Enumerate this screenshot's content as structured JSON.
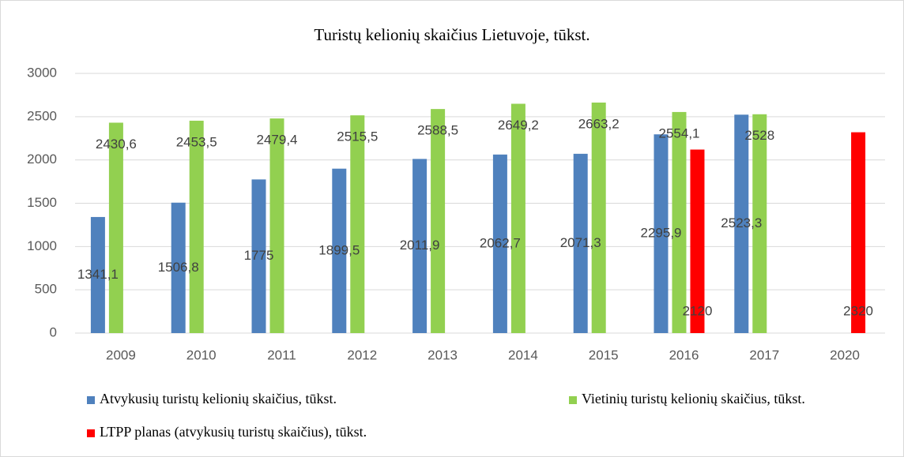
{
  "chart_data": {
    "type": "bar",
    "title": "Turistų kelionių skaičius Lietuvoje, tūkst.",
    "categories": [
      "2009",
      "2010",
      "2011",
      "2012",
      "2013",
      "2014",
      "2015",
      "2016",
      "2017",
      "2020"
    ],
    "series": [
      {
        "name": "Atvykusių turistų kelionių skaičius, tūkst.",
        "color": "#4f81bd",
        "values": [
          1341.1,
          1506.8,
          1775,
          1899.5,
          2011.9,
          2062.7,
          2071.3,
          2295.9,
          2523.3,
          null
        ],
        "value_labels": [
          "1341,1",
          "1506,8",
          "1775",
          "1899,5",
          "2011,9",
          "2062,7",
          "2071,3",
          "2295,9",
          "2523,3",
          null
        ]
      },
      {
        "name": "Vietinių turistų kelionių skaičius, tūkst.",
        "color": "#92d050",
        "values": [
          2430.6,
          2453.5,
          2479.4,
          2515.5,
          2588.5,
          2649.2,
          2663.2,
          2554.1,
          2528,
          null
        ],
        "value_labels": [
          "2430,6",
          "2453,5",
          "2479,4",
          "2515,5",
          "2588,5",
          "2649,2",
          "2663,2",
          "2554,1",
          "2528",
          null
        ]
      },
      {
        "name": "LTPP planas (atvykusių turistų skaičius), tūkst.",
        "color": "#ff0000",
        "values": [
          null,
          null,
          null,
          null,
          null,
          null,
          null,
          2120,
          null,
          2320
        ],
        "value_labels": [
          null,
          null,
          null,
          null,
          null,
          null,
          null,
          "2120",
          null,
          "2320"
        ]
      }
    ],
    "ylim": [
      0,
      3000
    ],
    "yticks": [
      0,
      500,
      1000,
      1500,
      2000,
      2500,
      3000
    ],
    "grid": true
  }
}
